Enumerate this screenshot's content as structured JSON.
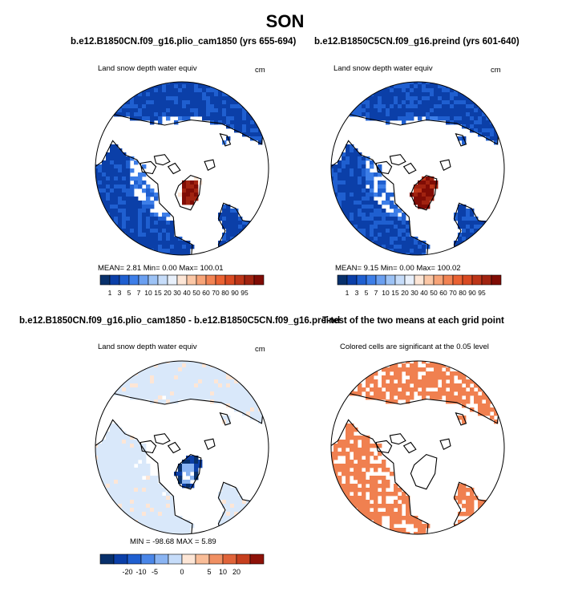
{
  "figure": {
    "title": "SON"
  },
  "colors": {
    "palette_pos": [
      "#08306b",
      "#0b3fa8",
      "#1f5fd0",
      "#3d7ee8",
      "#6a9ff0",
      "#9cc2f5",
      "#c6dcf9",
      "#e8f0fb",
      "#fde6d6",
      "#fbc7a6",
      "#f7a478",
      "#f28353",
      "#ea6232",
      "#d94a22",
      "#bd3518",
      "#a12310",
      "#800c05"
    ],
    "palette_diff": [
      "#08306b",
      "#0b3fa8",
      "#1f5fd0",
      "#4a86e8",
      "#8ab4f2",
      "#c6dcf9",
      "#fde6d6",
      "#f9bd98",
      "#f09063",
      "#e0643a",
      "#c63f1e",
      "#8e1208"
    ],
    "ocean": "#ffffff",
    "coast": "#000000"
  },
  "chart_data": [
    {
      "type": "heatmap",
      "name": "plio_cam1850",
      "title": "b.e12.B1850CN.f09_g16.plio_cam1850 (yrs 655-694)",
      "variable": "Land snow depth water equiv",
      "units": "cm",
      "projection": "polar stereographic, north pole",
      "stats_text": "MEAN=    2.81   Min=    0.00   Max=  100.01",
      "stats": {
        "mean": 2.81,
        "min": 0.0,
        "max": 100.01
      },
      "colorbar_levels": [
        1,
        3,
        5,
        7,
        10,
        15,
        20,
        30,
        40,
        50,
        60,
        70,
        80,
        90,
        95
      ]
    },
    {
      "type": "heatmap",
      "name": "preind",
      "title": "b.e12.B1850C5CN.f09_g16.preind (yrs 601-640)",
      "variable": "Land snow depth water equiv",
      "units": "cm",
      "projection": "polar stereographic, north pole",
      "stats_text": "MEAN=    9.15   Min=    0.00   Max=  100.02",
      "stats": {
        "mean": 9.15,
        "min": 0.0,
        "max": 100.02
      },
      "colorbar_levels": [
        1,
        3,
        5,
        7,
        10,
        15,
        20,
        30,
        40,
        50,
        60,
        70,
        80,
        90,
        95
      ]
    },
    {
      "type": "heatmap",
      "name": "difference",
      "title": "b.e12.B1850CN.f09_g16.plio_cam1850 - b.e12.B1850C5CN.f09_g16.preind",
      "variable": "Land snow depth water equiv",
      "units": "cm",
      "projection": "polar stereographic, north pole",
      "stats_text": "MIN = -98.68  MAX =    5.89",
      "stats": {
        "min": -98.68,
        "max": 5.89
      },
      "colorbar_labels": [
        "-20",
        "-10",
        "-5",
        "0",
        "5",
        "10",
        "20"
      ]
    },
    {
      "type": "heatmap",
      "name": "ttest",
      "title": "T-test of the two means at each grid point",
      "variable": "Colored cells are significant at the 0.05 level",
      "significance_level": 0.05
    }
  ]
}
